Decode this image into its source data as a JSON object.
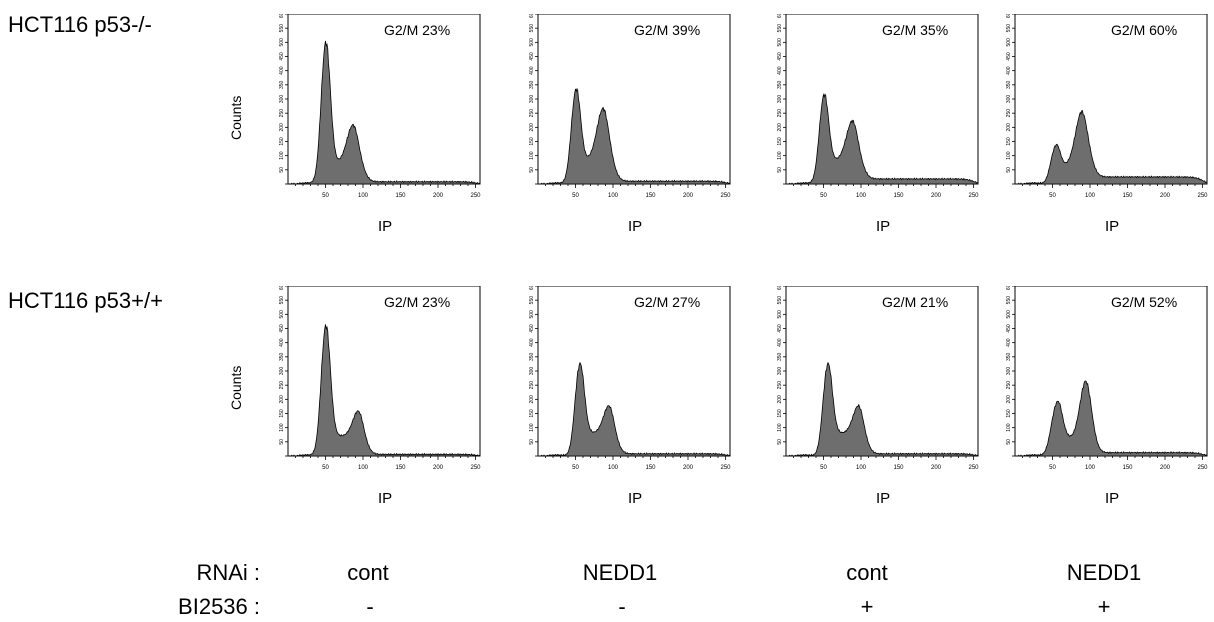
{
  "row_labels": [
    "HCT116 p53-/-",
    "HCT116 p53+/+"
  ],
  "y_axis_label": "Counts",
  "x_axis_label": "IP",
  "x_ticks": [
    50,
    100,
    150,
    200,
    250
  ],
  "y_ticks": [
    0,
    50,
    100,
    150,
    200,
    250,
    300,
    350,
    400,
    450,
    500,
    550,
    600
  ],
  "condition_labels": {
    "rnai": "RNAi :",
    "bi2536": "BI2536 :"
  },
  "conditions": [
    {
      "rnai": "cont",
      "bi2536": "-"
    },
    {
      "rnai": "NEDD1",
      "bi2536": "-"
    },
    {
      "rnai": "cont",
      "bi2536": "+"
    },
    {
      "rnai": "NEDD1",
      "bi2536": "+"
    }
  ],
  "colors": {
    "fill": "#6e6e6e",
    "line": "#000000"
  },
  "chart_data": [
    {
      "type": "area",
      "row": "HCT116 p53-/-",
      "condition": "cont / -",
      "annotation": "G2/M 23%",
      "g2m_percent": 23,
      "xlim": [
        0,
        256
      ],
      "ylim": [
        0,
        600
      ],
      "peaks": [
        {
          "x": 50,
          "y": 480,
          "w": 6
        },
        {
          "x": 88,
          "y": 150,
          "w": 9
        }
      ],
      "s_phase": 70,
      "tail": 8
    },
    {
      "type": "area",
      "row": "HCT116 p53-/-",
      "condition": "NEDD1 / -",
      "annotation": "G2/M 39%",
      "g2m_percent": 39,
      "xlim": [
        0,
        256
      ],
      "ylim": [
        0,
        600
      ],
      "peaks": [
        {
          "x": 50,
          "y": 310,
          "w": 6
        },
        {
          "x": 88,
          "y": 200,
          "w": 9
        }
      ],
      "s_phase": 80,
      "tail": 10
    },
    {
      "type": "area",
      "row": "HCT116 p53-/-",
      "condition": "cont / +",
      "annotation": "G2/M 35%",
      "g2m_percent": 35,
      "xlim": [
        0,
        256
      ],
      "ylim": [
        0,
        600
      ],
      "peaks": [
        {
          "x": 50,
          "y": 290,
          "w": 6
        },
        {
          "x": 90,
          "y": 155,
          "w": 9
        }
      ],
      "s_phase": 80,
      "tail": 18
    },
    {
      "type": "area",
      "row": "HCT116 p53-/-",
      "condition": "NEDD1 / +",
      "annotation": "G2/M 60%",
      "g2m_percent": 60,
      "xlim": [
        0,
        256
      ],
      "ylim": [
        0,
        600
      ],
      "peaks": [
        {
          "x": 53,
          "y": 115,
          "w": 6
        },
        {
          "x": 90,
          "y": 205,
          "w": 9
        }
      ],
      "s_phase": 60,
      "tail": 25
    },
    {
      "type": "area",
      "row": "HCT116 p53+/+",
      "condition": "cont / -",
      "annotation": "G2/M 23%",
      "g2m_percent": 23,
      "xlim": [
        0,
        256
      ],
      "ylim": [
        0,
        600
      ],
      "peaks": [
        {
          "x": 50,
          "y": 440,
          "w": 6
        },
        {
          "x": 95,
          "y": 100,
          "w": 8
        }
      ],
      "s_phase": 70,
      "tail": 6
    },
    {
      "type": "area",
      "row": "HCT116 p53+/+",
      "condition": "NEDD1 / -",
      "annotation": "G2/M 27%",
      "g2m_percent": 27,
      "xlim": [
        0,
        256
      ],
      "ylim": [
        0,
        600
      ],
      "peaks": [
        {
          "x": 55,
          "y": 300,
          "w": 6
        },
        {
          "x": 96,
          "y": 110,
          "w": 8
        }
      ],
      "s_phase": 80,
      "tail": 8
    },
    {
      "type": "area",
      "row": "HCT116 p53+/+",
      "condition": "cont / +",
      "annotation": "G2/M 21%",
      "g2m_percent": 21,
      "xlim": [
        0,
        256
      ],
      "ylim": [
        0,
        600
      ],
      "peaks": [
        {
          "x": 55,
          "y": 300,
          "w": 6
        },
        {
          "x": 98,
          "y": 110,
          "w": 8
        }
      ],
      "s_phase": 80,
      "tail": 8
    },
    {
      "type": "area",
      "row": "HCT116 p53+/+",
      "condition": "NEDD1 / +",
      "annotation": "G2/M 52%",
      "g2m_percent": 52,
      "xlim": [
        0,
        256
      ],
      "ylim": [
        0,
        600
      ],
      "peaks": [
        {
          "x": 55,
          "y": 170,
          "w": 7
        },
        {
          "x": 95,
          "y": 215,
          "w": 8
        }
      ],
      "s_phase": 60,
      "tail": 12
    }
  ]
}
